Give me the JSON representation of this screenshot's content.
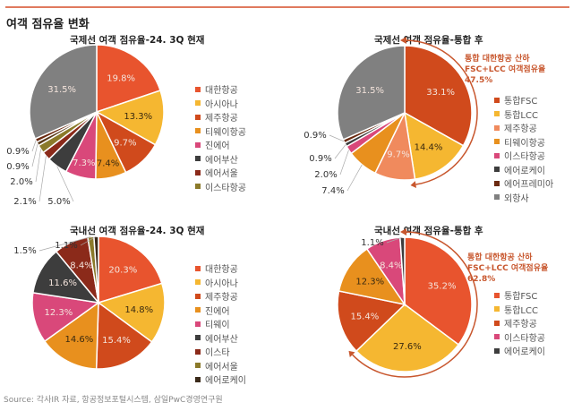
{
  "title": "여객 점유율 변화",
  "source": "Source: 각사IR 자료, 항공정보포털시스템, 삼일PwC경영연구원",
  "chart_data": [
    {
      "type": "pie",
      "title": "국제선 여객 점유율-24. 3Q 현재",
      "slices": [
        {
          "name": "대한항공",
          "value": 19.8,
          "label": "19.8%",
          "color": "#e8542e"
        },
        {
          "name": "아시아나",
          "value": 13.3,
          "label": "13.3%",
          "color": "#f5b731"
        },
        {
          "name": "제주항공",
          "value": 9.7,
          "label": "9.7%",
          "color": "#d04a1c"
        },
        {
          "name": "티웨이항공",
          "value": 7.4,
          "label": "7.4%",
          "color": "#e8901e"
        },
        {
          "name": "진에어",
          "value": 7.3,
          "label": "7.3%",
          "color": "#d9487a"
        },
        {
          "name": "에어부산",
          "value": 5.0,
          "label": "5.0%",
          "color": "#3d3d3d"
        },
        {
          "name": "에어서울",
          "value": 2.1,
          "label": "2.1%",
          "color": "#8b2a1a"
        },
        {
          "name": "이스타항공",
          "value": 2.0,
          "label": "2.0%",
          "color": "#8b7a2a"
        },
        {
          "name": "",
          "value": 0.9,
          "label": "0.9%",
          "color": "#5a3a1a"
        },
        {
          "name": "",
          "value": 0.9,
          "label": "0.9%",
          "color": "#6b2a10"
        },
        {
          "name": "",
          "value": 31.5,
          "label": "31.5%",
          "color": "#808080"
        }
      ]
    },
    {
      "type": "pie",
      "title": "국제선 여객 점유율-통합 후",
      "annotation": [
        "통합 대한항공 산하",
        "FSC+LCC 여객점유율",
        "47.5%"
      ],
      "slices": [
        {
          "name": "통합FSC",
          "value": 33.1,
          "label": "33.1%",
          "color": "#d04a1c"
        },
        {
          "name": "통합LCC",
          "value": 14.4,
          "label": "14.4%",
          "color": "#f5b731"
        },
        {
          "name": "제주항공",
          "value": 9.7,
          "label": "9.7%",
          "color": "#f08a5d"
        },
        {
          "name": "티웨이항공",
          "value": 7.4,
          "label": "7.4%",
          "color": "#e8901e"
        },
        {
          "name": "이스타항공",
          "value": 2.0,
          "label": "2.0%",
          "color": "#d9487a"
        },
        {
          "name": "에어로케이",
          "value": 0.9,
          "label": "0.9%",
          "color": "#3d3d3d"
        },
        {
          "name": "에어프레미아",
          "value": 0.9,
          "label": "0.9%",
          "color": "#6b2a10"
        },
        {
          "name": "외항사",
          "value": 31.5,
          "label": "31.5%",
          "color": "#808080"
        }
      ]
    },
    {
      "type": "pie",
      "title": "국내선 여객 점유율-24. 3Q 현재",
      "slices": [
        {
          "name": "대한항공",
          "value": 20.3,
          "label": "20.3%",
          "color": "#e8542e"
        },
        {
          "name": "아시아나",
          "value": 14.8,
          "label": "14.8%",
          "color": "#f5b731"
        },
        {
          "name": "제주항공",
          "value": 15.4,
          "label": "15.4%",
          "color": "#d04a1c"
        },
        {
          "name": "진에어",
          "value": 14.6,
          "label": "14.6%",
          "color": "#e8901e"
        },
        {
          "name": "티웨이",
          "value": 12.3,
          "label": "12.3%",
          "color": "#d9487a"
        },
        {
          "name": "에어부산",
          "value": 11.6,
          "label": "11.6%",
          "color": "#3d3d3d"
        },
        {
          "name": "이스타",
          "value": 8.4,
          "label": "8.4%",
          "color": "#8b2a1a"
        },
        {
          "name": "에어서울",
          "value": 1.5,
          "label": "1.5%",
          "color": "#8b7a2a"
        },
        {
          "name": "에어로케이",
          "value": 1.1,
          "label": "1.1%",
          "color": "#3a2a1a"
        }
      ]
    },
    {
      "type": "pie",
      "title": "국내선 여객 점유율-통합 후",
      "annotation": [
        "통합 대한항공 산하",
        "FSC+LCC 여객점유율",
        "62.8%"
      ],
      "slices": [
        {
          "name": "통합FSC",
          "value": 35.2,
          "label": "35.2%",
          "color": "#e8542e"
        },
        {
          "name": "통합LCC",
          "value": 27.6,
          "label": "27.6%",
          "color": "#f5b731"
        },
        {
          "name": "제주항공",
          "value": 15.4,
          "label": "15.4%",
          "color": "#d04a1c"
        },
        {
          "name": "",
          "value": 12.3,
          "label": "12.3%",
          "color": "#e8901e"
        },
        {
          "name": "이스타항공",
          "value": 8.4,
          "label": "8.4%",
          "color": "#d9487a"
        },
        {
          "name": "에어로케이",
          "value": 1.1,
          "label": "1.1%",
          "color": "#3d3d3d"
        }
      ]
    }
  ]
}
